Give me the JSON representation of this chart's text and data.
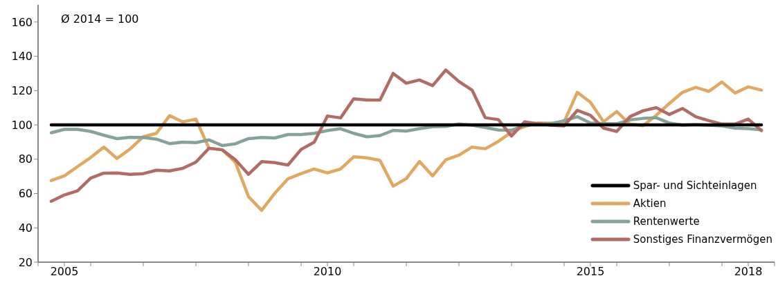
{
  "chart_data": {
    "type": "line",
    "annotations": [
      "Ø 2014 = 100"
    ],
    "x": [
      2005,
      2005.25,
      2005.5,
      2005.75,
      2006,
      2006.25,
      2006.5,
      2006.75,
      2007,
      2007.25,
      2007.5,
      2007.75,
      2008,
      2008.25,
      2008.5,
      2008.75,
      2009,
      2009.25,
      2009.5,
      2009.75,
      2010,
      2010.25,
      2010.5,
      2010.75,
      2011,
      2011.25,
      2011.5,
      2011.75,
      2012,
      2012.25,
      2012.5,
      2012.75,
      2013,
      2013.25,
      2013.5,
      2013.75,
      2014,
      2014.25,
      2014.5,
      2014.75,
      2015,
      2015.25,
      2015.5,
      2015.75,
      2016,
      2016.25,
      2016.5,
      2016.75,
      2017,
      2017.25,
      2017.5,
      2017.75,
      2018,
      2018.25,
      2018.5
    ],
    "series": [
      {
        "name": "Spar- und Sichteinlagen",
        "color": "#000000",
        "values": [
          100,
          100,
          100,
          100,
          100,
          100,
          100,
          100,
          100,
          100,
          100,
          100,
          100,
          100,
          100,
          100,
          100,
          100,
          100,
          100,
          100,
          100,
          100,
          100,
          100,
          100,
          100,
          100,
          100,
          100,
          100,
          100,
          100,
          100,
          100,
          100,
          100,
          100,
          100,
          100,
          100,
          100,
          100,
          100,
          100,
          100,
          100,
          100,
          100,
          100,
          100,
          100,
          100,
          100,
          100
        ]
      },
      {
        "name": "Aktien",
        "color": "#e0a860",
        "values": [
          67.6,
          70.3,
          75.7,
          81,
          87.1,
          80.4,
          86,
          93.1,
          95.1,
          105.4,
          101.8,
          103.4,
          86.4,
          85.5,
          78.3,
          58.2,
          50.2,
          60.2,
          68.6,
          71.6,
          74.3,
          72,
          74.3,
          81.4,
          80.8,
          79.3,
          64.3,
          68.7,
          78.7,
          70.3,
          79.7,
          82.4,
          87.1,
          86.1,
          90.4,
          95.8,
          99.1,
          101.1,
          101,
          101.8,
          119,
          113.2,
          101.8,
          107.8,
          100.5,
          99.5,
          105.6,
          112.5,
          119,
          121.9,
          119.6,
          125,
          118.6,
          122.2,
          120.3
        ]
      },
      {
        "name": "Rentenwerte",
        "color": "#87a397",
        "values": [
          95.4,
          97.4,
          97.4,
          96.2,
          94,
          92,
          92.8,
          92.7,
          91.7,
          89.1,
          90,
          89.7,
          91.3,
          88,
          89,
          92,
          92.7,
          92.4,
          94.4,
          94.4,
          95.1,
          96.7,
          97.8,
          95.1,
          93.1,
          93.8,
          96.8,
          96.4,
          97.8,
          98.9,
          99.1,
          100.5,
          99.8,
          98.5,
          97,
          96.9,
          99.8,
          100.5,
          100.7,
          102.5,
          104.8,
          101.1,
          100.7,
          100.7,
          102.9,
          103.8,
          104.2,
          101.1,
          99.8,
          100.2,
          99.8,
          99.4,
          98.1,
          97.8,
          97.1
        ]
      },
      {
        "name": "Sonstiges Finanzvermögen",
        "color": "#b06c65",
        "values": [
          55.5,
          59.2,
          61.6,
          69,
          71.9,
          72,
          71.2,
          71.6,
          73.6,
          73.2,
          74.7,
          78.3,
          86.4,
          85.5,
          79.7,
          71.2,
          78.6,
          78,
          76.6,
          85.7,
          90,
          105.2,
          104.1,
          115.2,
          114.5,
          114.5,
          130,
          124.3,
          126.2,
          122.9,
          132,
          125.3,
          120.3,
          104.2,
          103.1,
          93.5,
          101.8,
          100.7,
          99.8,
          99.4,
          108.5,
          105.6,
          98.1,
          96.2,
          104.8,
          108.2,
          110.1,
          106.1,
          109.6,
          104.8,
          102.5,
          100.5,
          100.5,
          103.4,
          96.7
        ]
      }
    ],
    "xlim": [
      2004.75,
      2018.75
    ],
    "xticks": [
      {
        "value": 2004.75,
        "label": null
      },
      {
        "value": 2005.25,
        "label": "2005"
      },
      {
        "value": 2005.75,
        "label": null
      },
      {
        "value": 2006.75,
        "label": null
      },
      {
        "value": 2007.75,
        "label": null
      },
      {
        "value": 2008.75,
        "label": null
      },
      {
        "value": 2009.75,
        "label": null
      },
      {
        "value": 2010.25,
        "label": "2010"
      },
      {
        "value": 2010.75,
        "label": null
      },
      {
        "value": 2011.75,
        "label": null
      },
      {
        "value": 2012.75,
        "label": null
      },
      {
        "value": 2013.75,
        "label": null
      },
      {
        "value": 2014.75,
        "label": null
      },
      {
        "value": 2015.25,
        "label": "2015"
      },
      {
        "value": 2015.75,
        "label": null
      },
      {
        "value": 2016.75,
        "label": null
      },
      {
        "value": 2017.75,
        "label": null
      },
      {
        "value": 2018.25,
        "label": "2018"
      },
      {
        "value": 2018.75,
        "label": null
      }
    ],
    "ylim": [
      20,
      170
    ],
    "yticks": [
      20,
      40,
      60,
      80,
      100,
      120,
      140,
      160
    ],
    "grid": false,
    "legend": "bottom right",
    "marker": "none",
    "line_style": "solid"
  }
}
